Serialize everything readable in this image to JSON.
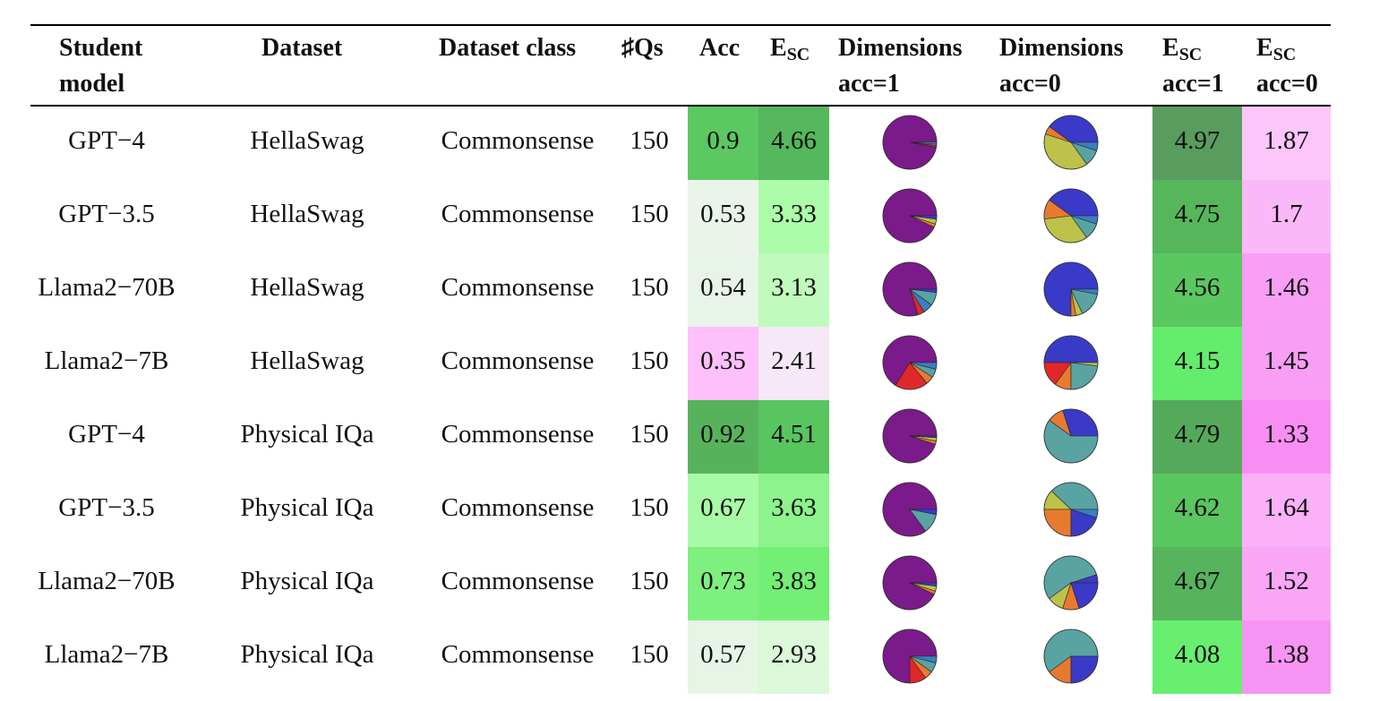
{
  "headers": {
    "student_model": "Student\nmodel",
    "dataset": "Dataset",
    "dataset_class": "Dataset class",
    "num_qs": "♯Qs",
    "acc": "Acc",
    "esc_main": "E",
    "esc_sub": "SC",
    "dims_acc1": "Dimensions\nacc=1",
    "dims_acc0": "Dimensions\nacc=0",
    "esc_acc1_main": "E",
    "esc_acc1_sub": "SC",
    "esc_acc1_tail": "acc=1",
    "esc_acc0_main": "E",
    "esc_acc0_sub": "SC",
    "esc_acc0_tail": "acc=0"
  },
  "rows": [
    {
      "model": "GPT−4",
      "dataset": "HellaSwag",
      "cls": "Commonsense",
      "qs": "150",
      "acc": "0.9",
      "esc": "4.66",
      "esc1": "4.97",
      "esc0": "1.87",
      "colors": {
        "acc": "#5cc862",
        "esc": "#55b85c",
        "esc1": "#589d5e",
        "esc0": "#fdc6fb"
      },
      "pie1": [
        {
          "v": 0.97,
          "c": "#7b1a8a"
        },
        {
          "v": 0.01,
          "c": "#e02828"
        },
        {
          "v": 0.01,
          "c": "#3a7fc0"
        },
        {
          "v": 0.01,
          "c": "#5aa3a3"
        }
      ],
      "pie0": [
        {
          "v": 0.4,
          "c": "#3a3ac8"
        },
        {
          "v": 0.05,
          "c": "#e87a30"
        },
        {
          "v": 0.4,
          "c": "#bcc24a"
        },
        {
          "v": 0.1,
          "c": "#5aa3a3"
        },
        {
          "v": 0.05,
          "c": "#3a7fc0"
        }
      ]
    },
    {
      "model": "GPT−3.5",
      "dataset": "HellaSwag",
      "cls": "Commonsense",
      "qs": "150",
      "acc": "0.53",
      "esc": "3.33",
      "esc1": "4.75",
      "esc0": "1.7",
      "colors": {
        "acc": "#eaf4ea",
        "esc": "#acfcaa",
        "esc1": "#56b65c",
        "esc0": "#fbb8f8"
      },
      "pie1": [
        {
          "v": 0.93,
          "c": "#7b1a8a"
        },
        {
          "v": 0.02,
          "c": "#e87a30"
        },
        {
          "v": 0.03,
          "c": "#bcc24a"
        },
        {
          "v": 0.02,
          "c": "#3a3ac8"
        }
      ],
      "pie0": [
        {
          "v": 0.4,
          "c": "#3a3ac8"
        },
        {
          "v": 0.12,
          "c": "#e87a30"
        },
        {
          "v": 0.33,
          "c": "#bcc24a"
        },
        {
          "v": 0.1,
          "c": "#5aa3a3"
        },
        {
          "v": 0.05,
          "c": "#3a7fc0"
        }
      ]
    },
    {
      "model": "Llama2−70B",
      "dataset": "HellaSwag",
      "cls": "Commonsense",
      "qs": "150",
      "acc": "0.54",
      "esc": "3.13",
      "esc1": "4.56",
      "esc0": "1.46",
      "colors": {
        "acc": "#e9f4e9",
        "esc": "#c0fbbd",
        "esc1": "#5ac761",
        "esc0": "#f99ef5"
      },
      "pie1": [
        {
          "v": 0.8,
          "c": "#7b1a8a"
        },
        {
          "v": 0.04,
          "c": "#e02828"
        },
        {
          "v": 0.06,
          "c": "#3a7fc0"
        },
        {
          "v": 0.08,
          "c": "#5aa3a3"
        },
        {
          "v": 0.02,
          "c": "#3a3ac8"
        }
      ],
      "pie0": [
        {
          "v": 0.75,
          "c": "#3a3ac8"
        },
        {
          "v": 0.03,
          "c": "#e87a30"
        },
        {
          "v": 0.04,
          "c": "#bcc24a"
        },
        {
          "v": 0.15,
          "c": "#5aa3a3"
        },
        {
          "v": 0.03,
          "c": "#3a7fc0"
        }
      ]
    },
    {
      "model": "Llama2−7B",
      "dataset": "HellaSwag",
      "cls": "Commonsense",
      "qs": "150",
      "acc": "0.35",
      "esc": "2.41",
      "esc1": "4.15",
      "esc0": "1.45",
      "colors": {
        "acc": "#fdc0fb",
        "esc": "#f6e8f6",
        "esc1": "#64ec6c",
        "esc0": "#f99ef5"
      },
      "pie1": [
        {
          "v": 0.66,
          "c": "#7b1a8a"
        },
        {
          "v": 0.2,
          "c": "#e02828"
        },
        {
          "v": 0.05,
          "c": "#e87a30"
        },
        {
          "v": 0.05,
          "c": "#5aa3a3"
        },
        {
          "v": 0.04,
          "c": "#3a7fc0"
        }
      ],
      "pie0": [
        {
          "v": 0.5,
          "c": "#3a3ac8"
        },
        {
          "v": 0.15,
          "c": "#e02828"
        },
        {
          "v": 0.1,
          "c": "#e87a30"
        },
        {
          "v": 0.23,
          "c": "#5aa3a3"
        },
        {
          "v": 0.02,
          "c": "#bcc24a"
        }
      ]
    },
    {
      "model": "GPT−4",
      "dataset": "Physical IQa",
      "cls": "Commonsense",
      "qs": "150",
      "acc": "0.92",
      "esc": "4.51",
      "esc1": "4.79",
      "esc0": "1.33",
      "colors": {
        "acc": "#56b35c",
        "esc": "#59c55f",
        "esc1": "#55a95b",
        "esc0": "#f88ef4"
      },
      "pie1": [
        {
          "v": 0.95,
          "c": "#7b1a8a"
        },
        {
          "v": 0.02,
          "c": "#e87a30"
        },
        {
          "v": 0.02,
          "c": "#bcc24a"
        },
        {
          "v": 0.01,
          "c": "#3a3ac8"
        }
      ],
      "pie0": [
        {
          "v": 0.3,
          "c": "#3a3ac8"
        },
        {
          "v": 0.1,
          "c": "#e87a30"
        },
        {
          "v": 0.6,
          "c": "#5aa3a3"
        }
      ]
    },
    {
      "model": "GPT−3.5",
      "dataset": "Physical IQa",
      "cls": "Commonsense",
      "qs": "150",
      "acc": "0.67",
      "esc": "3.63",
      "esc1": "4.62",
      "esc0": "1.64",
      "colors": {
        "acc": "#a8fba6",
        "esc": "#8df38d",
        "esc1": "#5ac660",
        "esc0": "#fbb1f8"
      },
      "pie1": [
        {
          "v": 0.85,
          "c": "#7b1a8a"
        },
        {
          "v": 0.12,
          "c": "#5aa3a3"
        },
        {
          "v": 0.03,
          "c": "#3a3ac8"
        }
      ],
      "pie0": [
        {
          "v": 0.38,
          "c": "#5aa3a3"
        },
        {
          "v": 0.12,
          "c": "#bcc24a"
        },
        {
          "v": 0.25,
          "c": "#e87a30"
        },
        {
          "v": 0.2,
          "c": "#3a3ac8"
        },
        {
          "v": 0.05,
          "c": "#3a7fc0"
        }
      ]
    },
    {
      "model": "Llama2−70B",
      "dataset": "Physical IQa",
      "cls": "Commonsense",
      "qs": "150",
      "acc": "0.73",
      "esc": "3.83",
      "esc1": "4.67",
      "esc0": "1.52",
      "colors": {
        "acc": "#7ef07e",
        "esc": "#73ef75",
        "esc1": "#57b45d",
        "esc0": "#f9a6f6"
      },
      "pie1": [
        {
          "v": 0.93,
          "c": "#7b1a8a"
        },
        {
          "v": 0.02,
          "c": "#e87a30"
        },
        {
          "v": 0.03,
          "c": "#bcc24a"
        },
        {
          "v": 0.02,
          "c": "#3a3ac8"
        }
      ],
      "pie0": [
        {
          "v": 0.05,
          "c": "#3a3ac8"
        },
        {
          "v": 0.55,
          "c": "#5aa3a3"
        },
        {
          "v": 0.1,
          "c": "#bcc24a"
        },
        {
          "v": 0.1,
          "c": "#e87a30"
        },
        {
          "v": 0.2,
          "c": "#3a3ac8"
        }
      ]
    },
    {
      "model": "Llama2−7B",
      "dataset": "Physical IQa",
      "cls": "Commonsense",
      "qs": "150",
      "acc": "0.57",
      "esc": "2.93",
      "esc1": "4.08",
      "esc0": "1.38",
      "colors": {
        "acc": "#e6f5e6",
        "esc": "#dbf8d9",
        "esc1": "#68ef70",
        "esc0": "#f894f4"
      },
      "pie1": [
        {
          "v": 0.75,
          "c": "#7b1a8a"
        },
        {
          "v": 0.1,
          "c": "#e02828"
        },
        {
          "v": 0.05,
          "c": "#e87a30"
        },
        {
          "v": 0.06,
          "c": "#5aa3a3"
        },
        {
          "v": 0.04,
          "c": "#3a7fc0"
        }
      ],
      "pie0": [
        {
          "v": 0.6,
          "c": "#5aa3a3"
        },
        {
          "v": 0.15,
          "c": "#e87a30"
        },
        {
          "v": 0.25,
          "c": "#3a3ac8"
        }
      ]
    }
  ]
}
